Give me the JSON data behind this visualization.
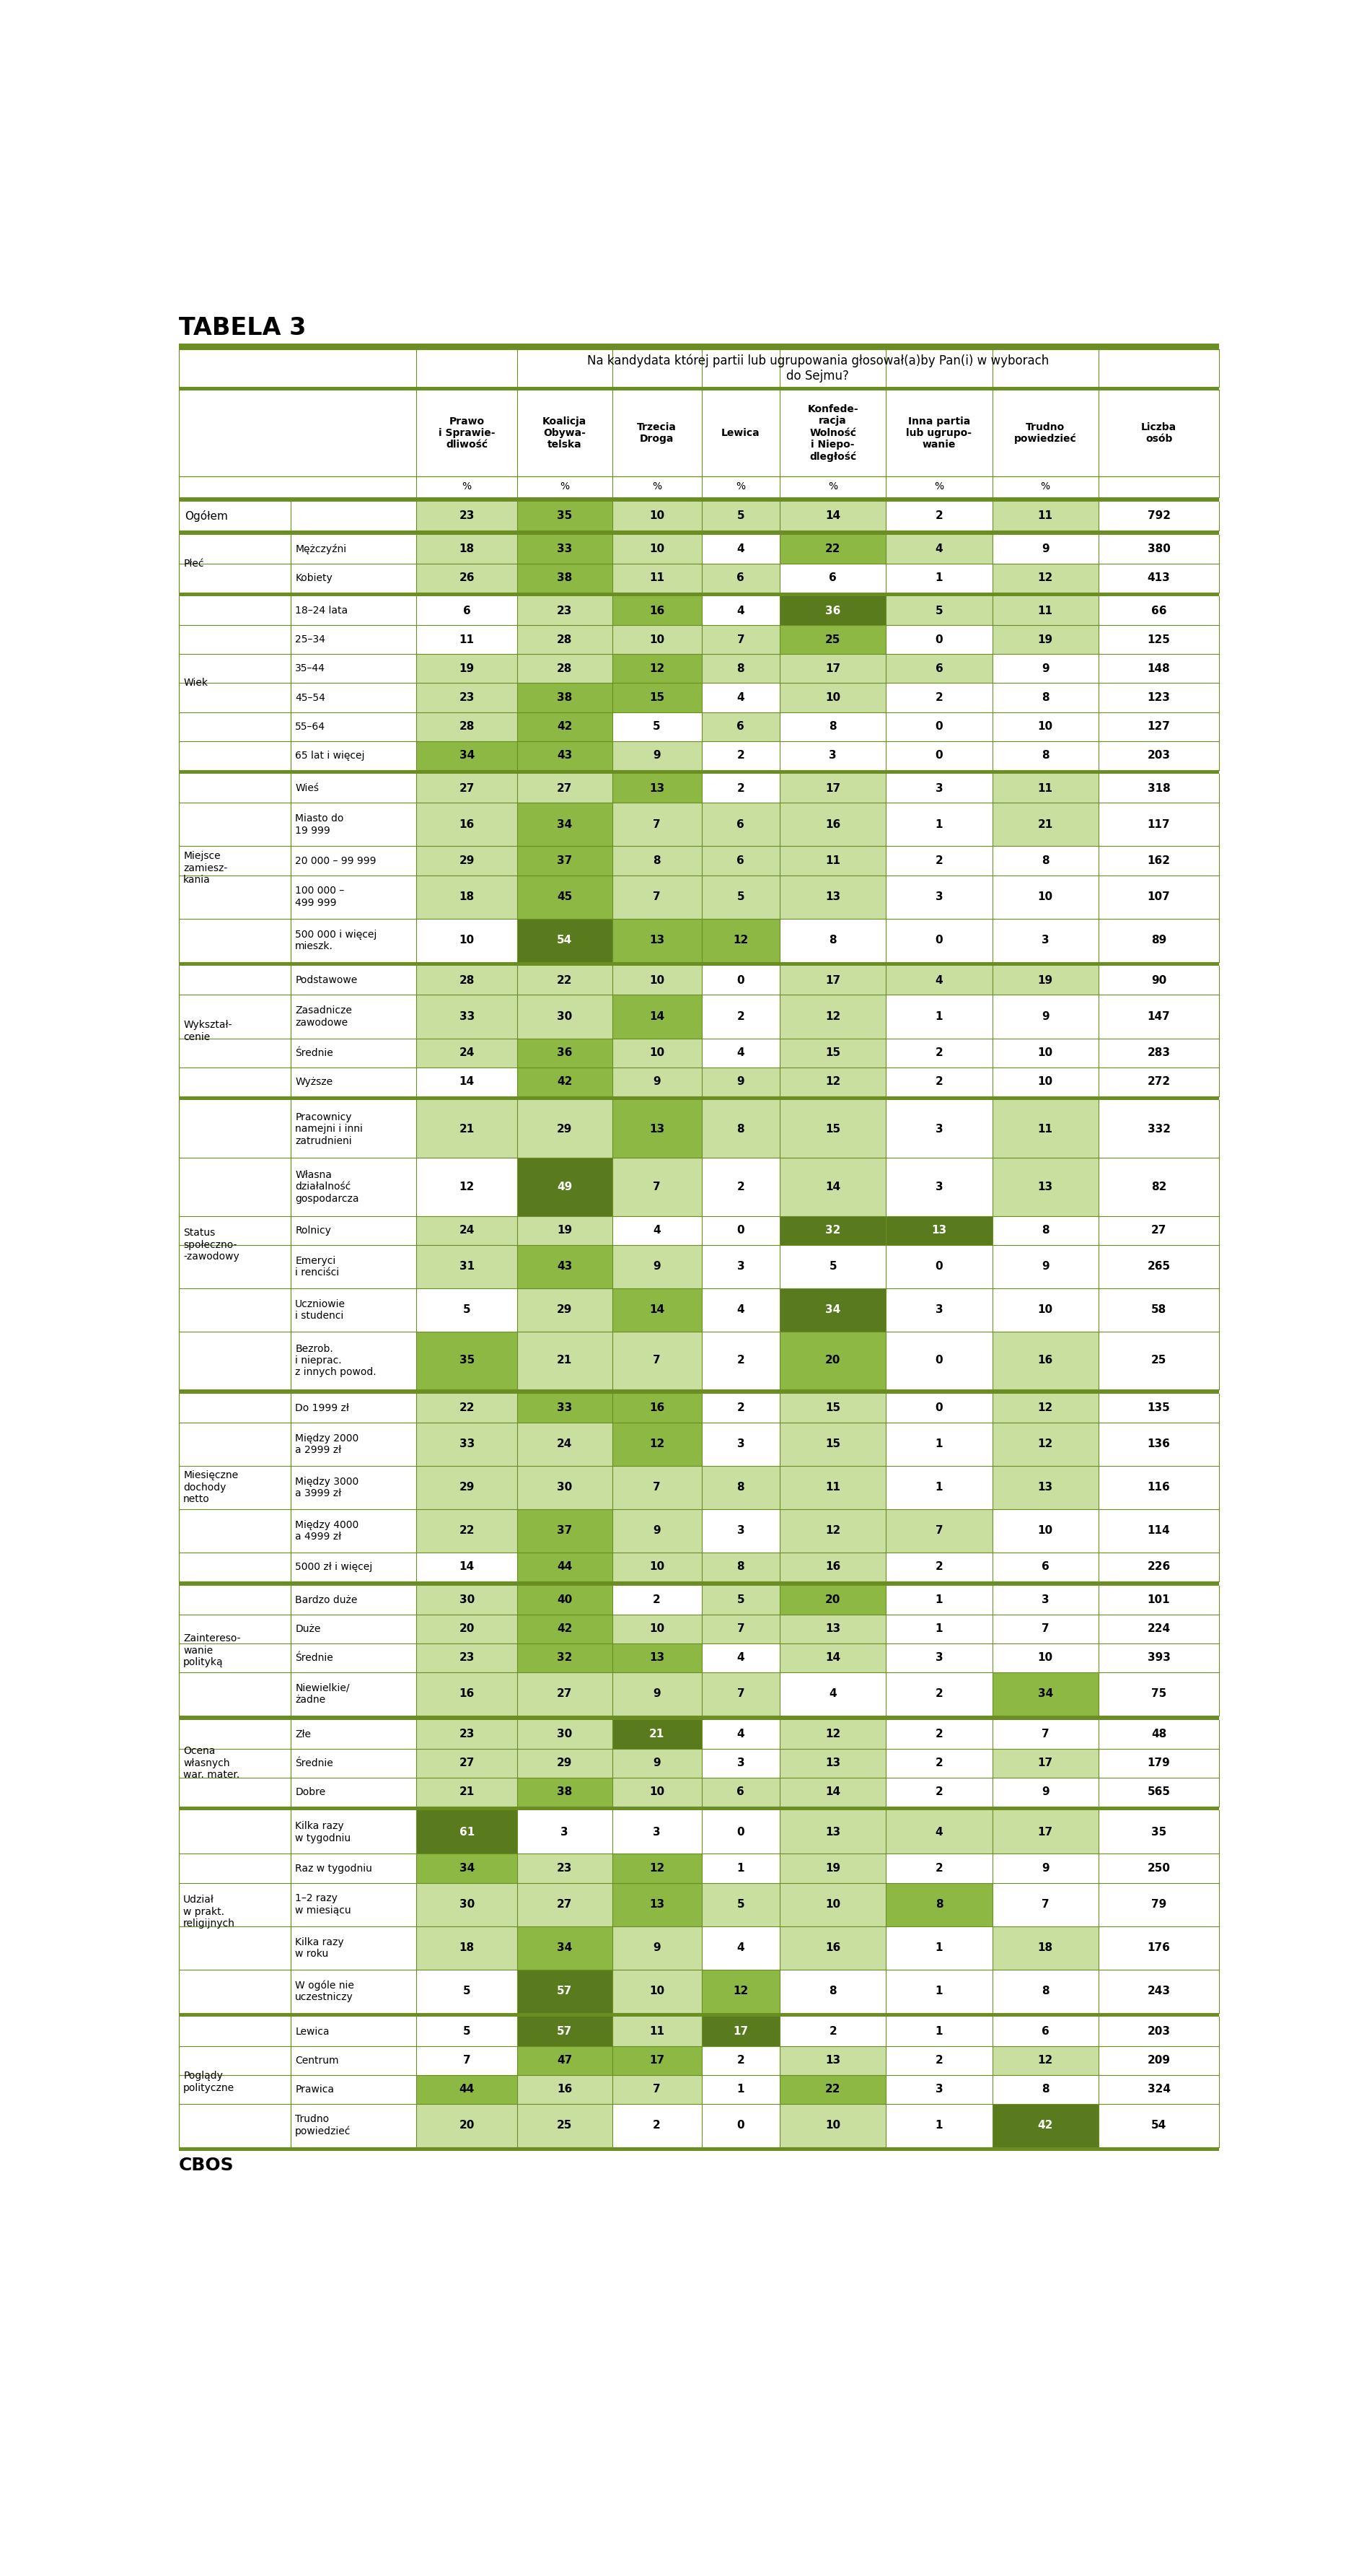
{
  "title": "TABELA 3",
  "subtitle": "Na kandydata której partii lub ugrupowania głosował(a)by Pan(i) w wyborach\ndo Sejmu?",
  "footer": "CBOS",
  "col_headers": [
    "Prawo\ni Sprawie-\ndliwość",
    "Koalicja\nObywa-\ntelska",
    "Trzecia\nDroga",
    "Lewica",
    "Konfede-\nracja\nWolność\ni Niepo-\ndległość",
    "Inna partia\nlub ugrupо-\nwanie",
    "Trudno\npowiedzieć",
    "Liczba\nosób"
  ],
  "sections": [
    {
      "section_label": "",
      "is_total": true,
      "rows": [
        {
          "cat1": "Ogółem",
          "cat2": "",
          "vals": [
            23,
            35,
            10,
            5,
            14,
            2,
            11,
            792
          ]
        }
      ]
    },
    {
      "section_label": "Płeć",
      "rows": [
        {
          "cat2": "Mężczyźni",
          "vals": [
            18,
            33,
            10,
            4,
            22,
            4,
            9,
            380
          ]
        },
        {
          "cat2": "Kobiety",
          "vals": [
            26,
            38,
            11,
            6,
            6,
            1,
            12,
            413
          ]
        }
      ]
    },
    {
      "section_label": "Wiek",
      "rows": [
        {
          "cat2": "18–24 lata",
          "vals": [
            6,
            23,
            16,
            4,
            36,
            5,
            11,
            66
          ]
        },
        {
          "cat2": "25–34",
          "vals": [
            11,
            28,
            10,
            7,
            25,
            0,
            19,
            125
          ]
        },
        {
          "cat2": "35–44",
          "vals": [
            19,
            28,
            12,
            8,
            17,
            6,
            9,
            148
          ]
        },
        {
          "cat2": "45–54",
          "vals": [
            23,
            38,
            15,
            4,
            10,
            2,
            8,
            123
          ]
        },
        {
          "cat2": "55–64",
          "vals": [
            28,
            42,
            5,
            6,
            8,
            0,
            10,
            127
          ]
        },
        {
          "cat2": "65 lat i więcej",
          "vals": [
            34,
            43,
            9,
            2,
            3,
            0,
            8,
            203
          ]
        }
      ]
    },
    {
      "section_label": "Miejsce\nzamiesz-\nkania",
      "rows": [
        {
          "cat2": "Wieś",
          "vals": [
            27,
            27,
            13,
            2,
            17,
            3,
            11,
            318
          ]
        },
        {
          "cat2": "Miasto do\n19 999",
          "vals": [
            16,
            34,
            7,
            6,
            16,
            1,
            21,
            117
          ]
        },
        {
          "cat2": "20 000 – 99 999",
          "vals": [
            29,
            37,
            8,
            6,
            11,
            2,
            8,
            162
          ]
        },
        {
          "cat2": "100 000 –\n499 999",
          "vals": [
            18,
            45,
            7,
            5,
            13,
            3,
            10,
            107
          ]
        },
        {
          "cat2": "500 000 i więcej\nmieszk.",
          "vals": [
            10,
            54,
            13,
            12,
            8,
            0,
            3,
            89
          ]
        }
      ]
    },
    {
      "section_label": "Wykształ-\ncenie",
      "rows": [
        {
          "cat2": "Podstawowe",
          "vals": [
            28,
            22,
            10,
            0,
            17,
            4,
            19,
            90
          ]
        },
        {
          "cat2": "Zasadnicze\nzawodowe",
          "vals": [
            33,
            30,
            14,
            2,
            12,
            1,
            9,
            147
          ]
        },
        {
          "cat2": "Średnie",
          "vals": [
            24,
            36,
            10,
            4,
            15,
            2,
            10,
            283
          ]
        },
        {
          "cat2": "Wyższe",
          "vals": [
            14,
            42,
            9,
            9,
            12,
            2,
            10,
            272
          ]
        }
      ]
    },
    {
      "section_label": "Status\nspołeczno-\n-zawodowy",
      "rows": [
        {
          "cat2": "Pracownicy\nnamejni i inni\nzatrudnieni",
          "vals": [
            21,
            29,
            13,
            8,
            15,
            3,
            11,
            332
          ]
        },
        {
          "cat2": "Własna\ndziałalność\ngospodarcza",
          "vals": [
            12,
            49,
            7,
            2,
            14,
            3,
            13,
            82
          ]
        },
        {
          "cat2": "Rolnicy",
          "vals": [
            24,
            19,
            4,
            0,
            32,
            13,
            8,
            27
          ]
        },
        {
          "cat2": "Emeryci\ni renciści",
          "vals": [
            31,
            43,
            9,
            3,
            5,
            0,
            9,
            265
          ]
        },
        {
          "cat2": "Uczniowie\ni studenci",
          "vals": [
            5,
            29,
            14,
            4,
            34,
            3,
            10,
            58
          ]
        },
        {
          "cat2": "Bezrob.\ni nieprac.\nz innych powod.",
          "vals": [
            35,
            21,
            7,
            2,
            20,
            0,
            16,
            25
          ]
        }
      ]
    },
    {
      "section_label": "Miesięczne\ndochody\nnetto",
      "rows": [
        {
          "cat2": "Do 1999 zł",
          "vals": [
            22,
            33,
            16,
            2,
            15,
            0,
            12,
            135
          ]
        },
        {
          "cat2": "Między 2000\na 2999 zł",
          "vals": [
            33,
            24,
            12,
            3,
            15,
            1,
            12,
            136
          ]
        },
        {
          "cat2": "Między 3000\na 3999 zł",
          "vals": [
            29,
            30,
            7,
            8,
            11,
            1,
            13,
            116
          ]
        },
        {
          "cat2": "Między 4000\na 4999 zł",
          "vals": [
            22,
            37,
            9,
            3,
            12,
            7,
            10,
            114
          ]
        },
        {
          "cat2": "5000 zł i więcej",
          "vals": [
            14,
            44,
            10,
            8,
            16,
            2,
            6,
            226
          ]
        }
      ]
    },
    {
      "section_label": "Zaintereso-\nwanie\npolityką",
      "rows": [
        {
          "cat2": "Bardzo duże",
          "vals": [
            30,
            40,
            2,
            5,
            20,
            1,
            3,
            101
          ]
        },
        {
          "cat2": "Duże",
          "vals": [
            20,
            42,
            10,
            7,
            13,
            1,
            7,
            224
          ]
        },
        {
          "cat2": "Średnie",
          "vals": [
            23,
            32,
            13,
            4,
            14,
            3,
            10,
            393
          ]
        },
        {
          "cat2": "Niewielkie/\nżadne",
          "vals": [
            16,
            27,
            9,
            7,
            4,
            2,
            34,
            75
          ]
        }
      ]
    },
    {
      "section_label": "Ocena\nwłasnych\nwar. mater.",
      "rows": [
        {
          "cat2": "Złe",
          "vals": [
            23,
            30,
            21,
            4,
            12,
            2,
            7,
            48
          ]
        },
        {
          "cat2": "Średnie",
          "vals": [
            27,
            29,
            9,
            3,
            13,
            2,
            17,
            179
          ]
        },
        {
          "cat2": "Dobre",
          "vals": [
            21,
            38,
            10,
            6,
            14,
            2,
            9,
            565
          ]
        }
      ]
    },
    {
      "section_label": "Udział\nw prakt.\nreligijnych",
      "rows": [
        {
          "cat2": "Kilka razy\nw tygodniu",
          "vals": [
            61,
            3,
            3,
            0,
            13,
            4,
            17,
            35
          ]
        },
        {
          "cat2": "Raz w tygodniu",
          "vals": [
            34,
            23,
            12,
            1,
            19,
            2,
            9,
            250
          ]
        },
        {
          "cat2": "1–2 razy\nw miesiącu",
          "vals": [
            30,
            27,
            13,
            5,
            10,
            8,
            7,
            79
          ]
        },
        {
          "cat2": "Kilka razy\nw roku",
          "vals": [
            18,
            34,
            9,
            4,
            16,
            1,
            18,
            176
          ]
        },
        {
          "cat2": "W ogóle nie\nuczestniczy",
          "vals": [
            5,
            57,
            10,
            12,
            8,
            1,
            8,
            243
          ]
        }
      ]
    },
    {
      "section_label": "Poglądy\npolityczne",
      "rows": [
        {
          "cat2": "Lewica",
          "vals": [
            5,
            57,
            11,
            17,
            2,
            1,
            6,
            203
          ]
        },
        {
          "cat2": "Centrum",
          "vals": [
            7,
            47,
            17,
            2,
            13,
            2,
            12,
            209
          ]
        },
        {
          "cat2": "Prawica",
          "vals": [
            44,
            16,
            7,
            1,
            22,
            3,
            8,
            324
          ]
        },
        {
          "cat2": "Trudno\npowiedzieć",
          "vals": [
            20,
            25,
            2,
            0,
            10,
            1,
            42,
            54
          ]
        }
      ]
    }
  ],
  "col_max": [
    61,
    57,
    21,
    17,
    36,
    13,
    42
  ],
  "green_dark": "#5a7a1e",
  "green_mid": "#8db843",
  "green_light": "#c8dfa0",
  "white": "#ffffff",
  "green_sep": "#6b8e23"
}
